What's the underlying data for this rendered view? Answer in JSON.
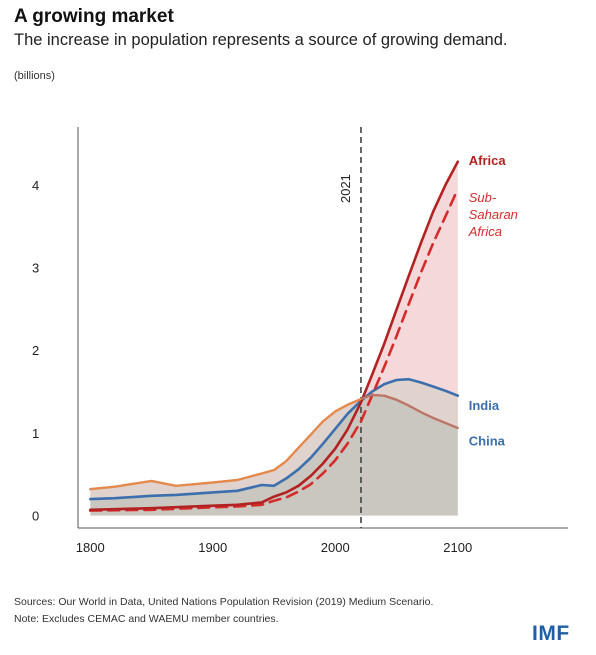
{
  "title": "A growing market",
  "subtitle": "The increase in population represents a source of growing demand.",
  "units": "(billions)",
  "source": "Sources: Our World in Data, United Nations Population Revision (2019) Medium Scenario.",
  "note": "Note: Excludes CEMAC and WAEMU member countries.",
  "logo": "IMF",
  "chart_data": {
    "type": "line",
    "xlim": [
      1790,
      2190
    ],
    "ylim": [
      -0.15,
      4.7
    ],
    "xticks": [
      1800,
      1900,
      2000,
      2100
    ],
    "yticks": [
      0,
      1,
      2,
      3,
      4
    ],
    "xtick_labels": [
      "1800",
      "1900",
      "2000",
      "2100"
    ],
    "ytick_labels": [
      "0",
      "1",
      "2",
      "3",
      "4"
    ],
    "vline": {
      "x": 2021,
      "label": "2021"
    },
    "series": [
      {
        "name": "India",
        "color": "#3b6fad",
        "style": "solid",
        "x": [
          1800,
          1820,
          1850,
          1870,
          1900,
          1920,
          1940,
          1950,
          1960,
          1970,
          1980,
          1990,
          2000,
          2010,
          2021,
          2030,
          2040,
          2050,
          2060,
          2070,
          2080,
          2090,
          2100
        ],
        "y": [
          0.2,
          0.21,
          0.24,
          0.25,
          0.28,
          0.3,
          0.37,
          0.36,
          0.45,
          0.56,
          0.7,
          0.87,
          1.05,
          1.23,
          1.39,
          1.5,
          1.59,
          1.64,
          1.65,
          1.61,
          1.56,
          1.51,
          1.45
        ]
      },
      {
        "name": "China",
        "color": "#b9776a",
        "style": "solid",
        "x": [
          1800,
          1820,
          1850,
          1870,
          1900,
          1920,
          1940,
          1950,
          1960,
          1970,
          1980,
          1990,
          2000,
          2010,
          2021,
          2030,
          2040,
          2050,
          2060,
          2070,
          2080,
          2090,
          2100
        ],
        "y": [
          0.32,
          0.35,
          0.42,
          0.36,
          0.4,
          0.43,
          0.51,
          0.55,
          0.66,
          0.82,
          0.98,
          1.14,
          1.26,
          1.34,
          1.41,
          1.46,
          1.45,
          1.4,
          1.33,
          1.25,
          1.18,
          1.12,
          1.06
        ]
      },
      {
        "name": "Africa",
        "color": "#b22222",
        "style": "solid",
        "x": [
          1800,
          1850,
          1900,
          1920,
          1940,
          1950,
          1960,
          1970,
          1980,
          1990,
          2000,
          2010,
          2021,
          2030,
          2040,
          2050,
          2060,
          2070,
          2080,
          2090,
          2100
        ],
        "y": [
          0.07,
          0.09,
          0.12,
          0.13,
          0.16,
          0.23,
          0.28,
          0.36,
          0.48,
          0.63,
          0.81,
          1.04,
          1.37,
          1.7,
          2.08,
          2.49,
          2.9,
          3.3,
          3.68,
          4.0,
          4.28
        ]
      },
      {
        "name": "Sub-Saharan Africa",
        "color": "#d62b2b",
        "style": "dashed",
        "x": [
          1800,
          1850,
          1900,
          1920,
          1940,
          1950,
          1960,
          1970,
          1980,
          1990,
          2000,
          2010,
          2021,
          2030,
          2040,
          2050,
          2060,
          2070,
          2080,
          2090,
          2100
        ],
        "y": [
          0.06,
          0.07,
          0.1,
          0.11,
          0.13,
          0.18,
          0.22,
          0.29,
          0.38,
          0.51,
          0.67,
          0.87,
          1.14,
          1.45,
          1.8,
          2.17,
          2.56,
          2.94,
          3.3,
          3.62,
          3.95
        ]
      }
    ],
    "fills": {
      "china_area": "#c9c7c0",
      "india_band": "#c4d7ea",
      "china_band": "#f6c6a4",
      "africa_band": "#f4d6d8"
    },
    "labels": {
      "africa": "Africa",
      "ssa_line1": "Sub-",
      "ssa_line2": "Saharan",
      "ssa_line3": "Africa",
      "india": "India",
      "china": "China"
    }
  }
}
